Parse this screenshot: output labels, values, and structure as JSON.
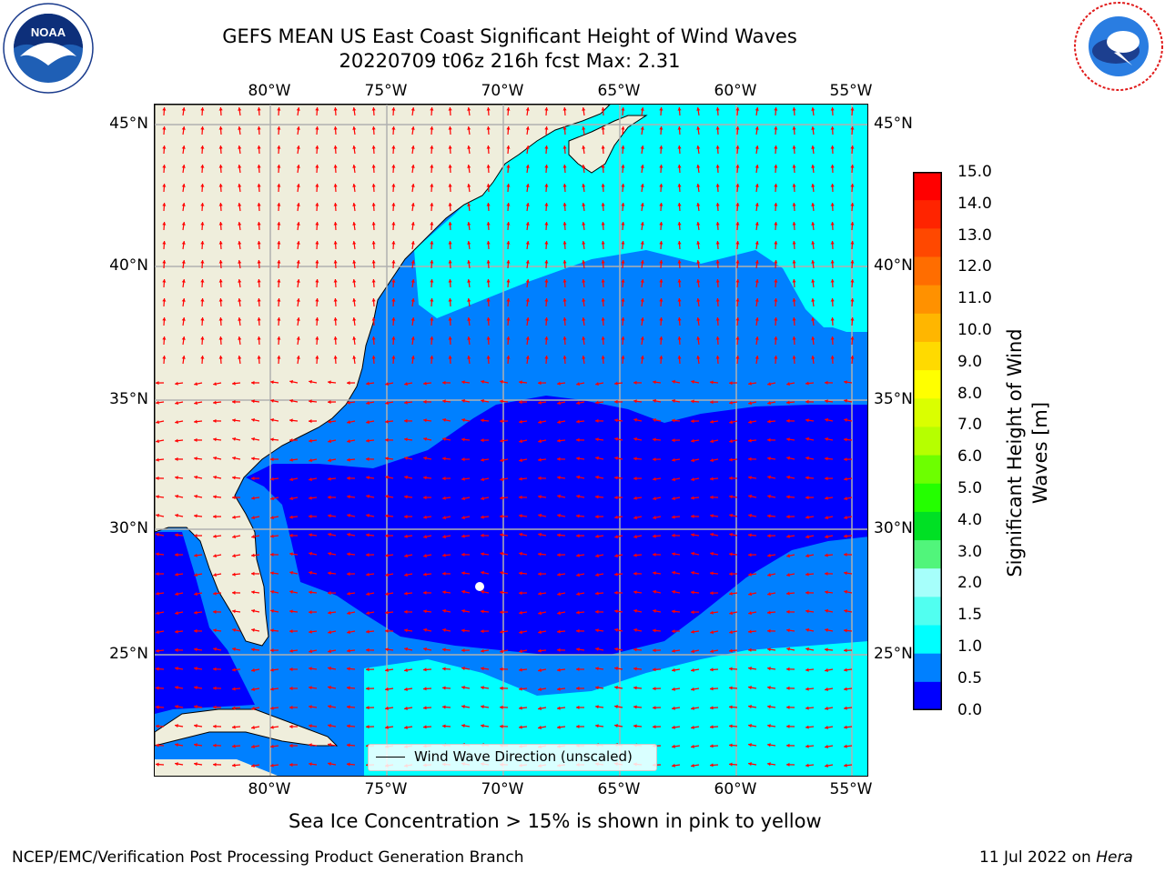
{
  "title": {
    "line1": "GEFS MEAN US East Coast Significant Height of Wind Waves",
    "line2": "20220709 t06z 216h fcst   Max: 2.31"
  },
  "logos": {
    "left": "NOAA",
    "left_ring": "NATIONAL OCEANIC AND ATMOSPHERIC ADMINISTRATION · U.S. DEPARTMENT OF COMMERCE",
    "right_ring": "NATIONAL WEATHER SERVICE"
  },
  "lon_ticks": [
    "80°W",
    "75°W",
    "70°W",
    "65°W",
    "60°W",
    "55°W"
  ],
  "lat_ticks": [
    "45°N",
    "40°N",
    "35°N",
    "30°N",
    "25°N"
  ],
  "colorbar": {
    "title_line1": "Significant Height of Wind",
    "title_line2": "Waves [m]",
    "labels": [
      "15.0",
      "14.0",
      "13.0",
      "12.0",
      "11.0",
      "10.0",
      "9.0",
      "8.0",
      "7.0",
      "6.0",
      "5.0",
      "4.0",
      "3.0",
      "2.0",
      "1.5",
      "1.0",
      "0.5",
      "0.0"
    ],
    "colors": [
      "#ff0000",
      "#ff2400",
      "#ff4800",
      "#ff6d00",
      "#ff9100",
      "#ffb600",
      "#ffda00",
      "#ffff00",
      "#daff00",
      "#b6ff00",
      "#6dff00",
      "#24ff00",
      "#00e024",
      "#51f57b",
      "#a6fffb",
      "#51fff0",
      "#00ffff",
      "#0080ff",
      "#0000ff"
    ]
  },
  "legend": {
    "label": "Wind Wave Direction (unscaled)"
  },
  "notes": {
    "sea_ice": "Sea Ice Concentration > 15% is shown in pink to yellow",
    "footer_left": "NCEP/EMC/Verification Post Processing Product Generation Branch",
    "footer_date": "11 Jul 2022 on ",
    "footer_machine": "Hera"
  },
  "map_colors": {
    "land": "#efeedc",
    "ocean_0_05": "#0000ff",
    "ocean_05_1": "#0080ff",
    "ocean_1_15": "#00ffff",
    "arrow": "#ff0000",
    "grid": "#b0b0b0"
  }
}
